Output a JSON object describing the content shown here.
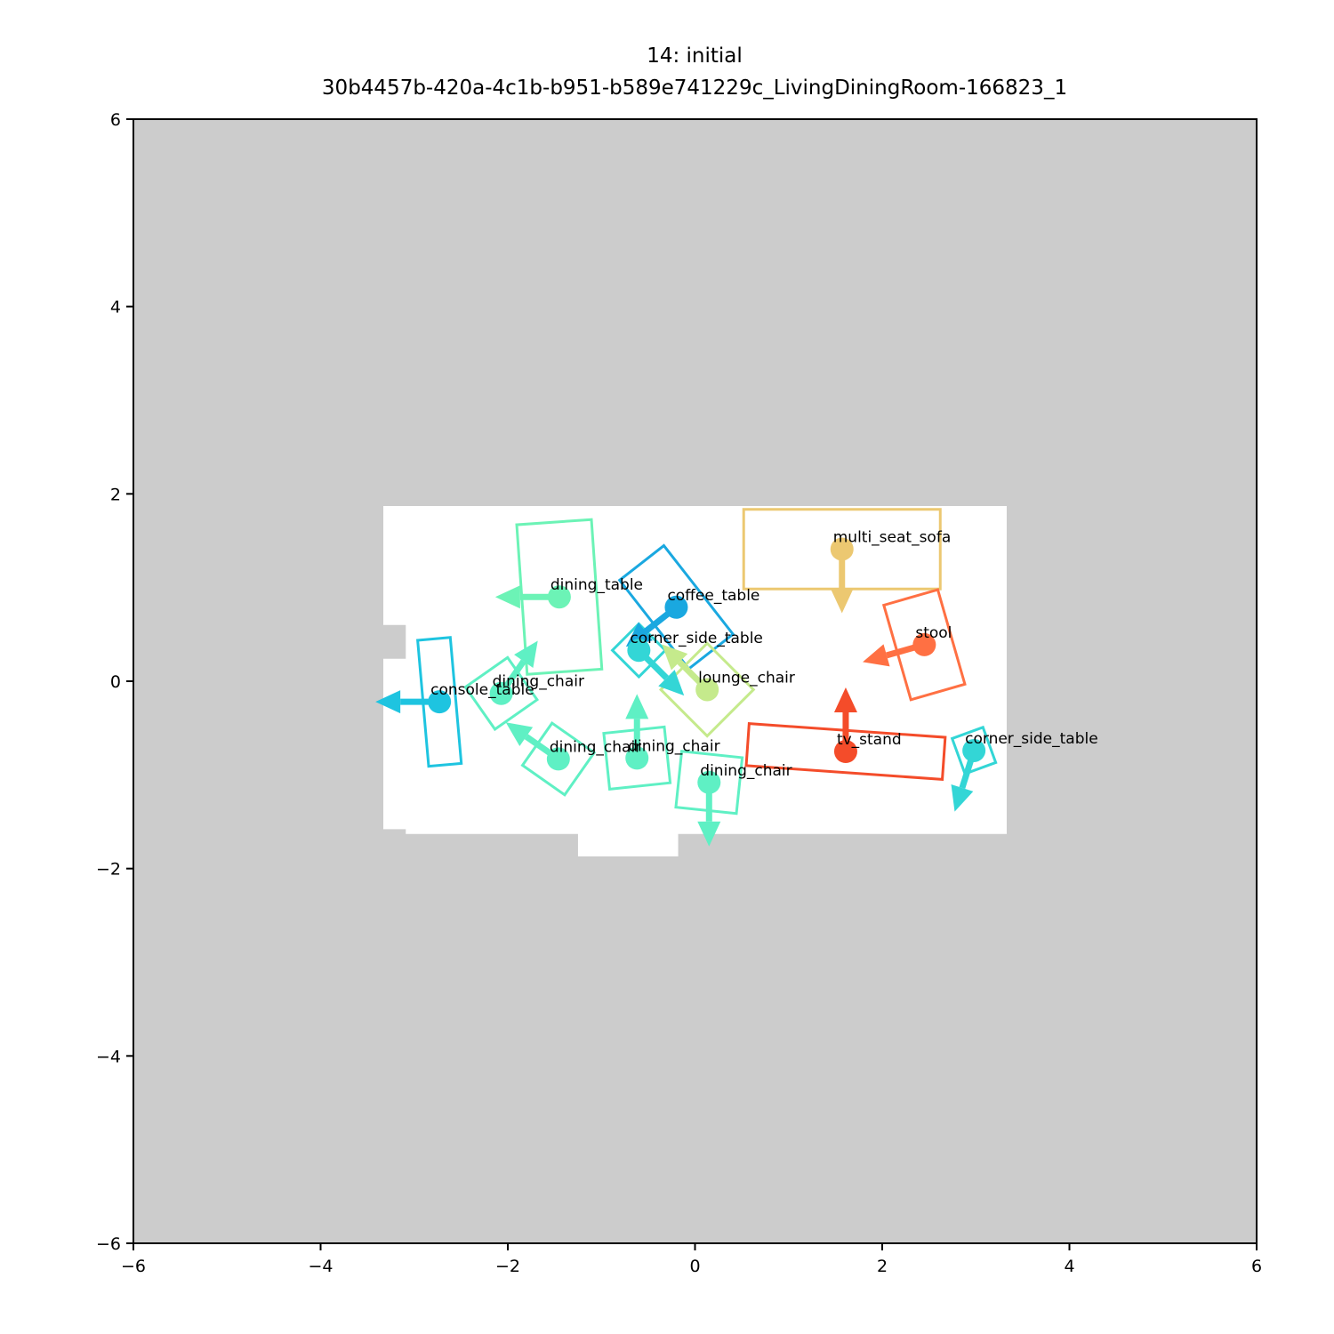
{
  "title": "14: initial",
  "subtitle": "30b4457b-420a-4c1b-b951-b589e741229c_LivingDiningRoom-166823_1",
  "chart_data": {
    "type": "scatter",
    "title": "14: initial",
    "subtitle": "30b4457b-420a-4c1b-b951-b589e741229c_LivingDiningRoom-166823_1",
    "xlim": [
      -6,
      6
    ],
    "ylim": [
      -6,
      6
    ],
    "xticks": [
      -6,
      -4,
      -2,
      0,
      2,
      4,
      6
    ],
    "yticks": [
      -6,
      -4,
      -2,
      0,
      2,
      4,
      6
    ],
    "xtick_labels": [
      "−6",
      "−4",
      "−2",
      "0",
      "2",
      "4",
      "6"
    ],
    "ytick_labels": [
      "−6",
      "−4",
      "−2",
      "0",
      "2",
      "4",
      "6"
    ],
    "background_color": "#cccccc",
    "floor_color": "#ffffff",
    "floor_polygon": [
      [
        -3.33,
        1.87
      ],
      [
        3.33,
        1.87
      ],
      [
        3.33,
        -1.63
      ],
      [
        -0.18,
        -1.63
      ],
      [
        -0.18,
        -1.87
      ],
      [
        -1.25,
        -1.87
      ],
      [
        -1.25,
        -1.63
      ],
      [
        -3.09,
        -1.63
      ],
      [
        -3.09,
        -1.58
      ],
      [
        -3.33,
        -1.58
      ],
      [
        -3.33,
        0.24
      ],
      [
        -3.09,
        0.24
      ],
      [
        -3.09,
        0.6
      ],
      [
        -3.33,
        0.6
      ]
    ],
    "objects": [
      {
        "label": "multi_seat_sofa",
        "x": 1.57,
        "y": 1.41,
        "w": 2.1,
        "d": 0.85,
        "angle": 0,
        "dir": [
          0,
          -1
        ],
        "color": "#ecc871"
      },
      {
        "label": "dining_table",
        "x": -1.45,
        "y": 0.9,
        "w": 0.8,
        "d": 1.6,
        "angle": 4,
        "dir": [
          -1,
          0
        ],
        "color": "#6cf3b6"
      },
      {
        "label": "coffee_table",
        "x": -0.2,
        "y": 0.79,
        "w": 0.6,
        "d": 1.2,
        "angle": 38,
        "dir": [
          -0.79,
          -0.62
        ],
        "color": "#1aa8e0"
      },
      {
        "label": "corner_side_table",
        "x": -0.6,
        "y": 0.33,
        "w": 0.4,
        "d": 0.4,
        "angle": 45,
        "dir": [
          0.71,
          -0.71
        ],
        "color": "#33d6d6"
      },
      {
        "label": "stool",
        "x": 2.45,
        "y": 0.39,
        "w": 0.6,
        "d": 1.05,
        "angle": 16,
        "dir": [
          -0.96,
          -0.27
        ],
        "color": "#ff7043"
      },
      {
        "label": "lounge_chair",
        "x": 0.13,
        "y": -0.09,
        "w": 0.7,
        "d": 0.7,
        "angle": 45,
        "dir": [
          -0.71,
          0.71
        ],
        "color": "#c5ea8c"
      },
      {
        "label": "console_table",
        "x": -2.73,
        "y": -0.22,
        "w": 0.35,
        "d": 1.35,
        "angle": 5,
        "dir": [
          -1,
          0
        ],
        "color": "#1ec4e0"
      },
      {
        "label": "dining_chair",
        "x": -2.07,
        "y": -0.13,
        "w": 0.55,
        "d": 0.55,
        "angle": 35,
        "dir": [
          0.57,
          0.82
        ],
        "color": "#5ff0c4"
      },
      {
        "label": "dining_chair",
        "x": -1.46,
        "y": -0.83,
        "w": 0.55,
        "d": 0.55,
        "angle": -35,
        "dir": [
          -0.82,
          0.57
        ],
        "color": "#5ff0c4"
      },
      {
        "label": "dining_chair",
        "x": -0.62,
        "y": -0.82,
        "w": 0.65,
        "d": 0.6,
        "angle": 6,
        "dir": [
          0,
          1
        ],
        "color": "#5ff0c4"
      },
      {
        "label": "dining_chair",
        "x": 0.15,
        "y": -1.08,
        "w": 0.65,
        "d": 0.6,
        "angle": -6,
        "dir": [
          0,
          -1
        ],
        "color": "#5ff0c4"
      },
      {
        "label": "tv_stand",
        "x": 1.61,
        "y": -0.75,
        "w": 2.1,
        "d": 0.45,
        "angle": -4,
        "dir": [
          0,
          1
        ],
        "color": "#f44c2a"
      },
      {
        "label": "corner_side_table",
        "x": 2.98,
        "y": -0.74,
        "w": 0.35,
        "d": 0.4,
        "angle": 20,
        "dir": [
          -0.3,
          -0.95
        ],
        "color": "#33d6d6"
      }
    ]
  }
}
